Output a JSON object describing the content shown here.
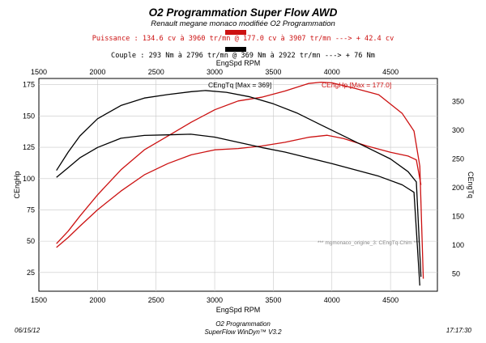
{
  "header": {
    "title": "O2 Programmation Super Flow AWD",
    "subtitle": "Renault megane monaco modifiée O2 Programmation",
    "power_summary": "Puissance : 134.6 cv à 3960 tr/mn  @  177.0 cv à 3907 tr/mn   ---> + 42.4 cv",
    "torque_summary": "Couple : 293 Nm à 2796 tr/mn  @  369 Nm à 2922 tr/mn    ---> + 76 Nm",
    "power_color": "#cc1111",
    "torque_color": "#000000"
  },
  "footer": {
    "date": "06/15/12",
    "company": "O2 Programmation",
    "software": "SuperFlow WinDyn™ V3.2",
    "time": "17:17:30"
  },
  "chart_data": {
    "type": "line",
    "xlabel": "EngSpd RPM",
    "ylabel_left": "CEngHp",
    "ylabel_right": "CEngTq",
    "xlim": [
      1500,
      4900
    ],
    "ylim_left": [
      10,
      180
    ],
    "ylim_right": [
      20,
      390
    ],
    "x_ticks": [
      1500,
      2000,
      2500,
      3000,
      3500,
      4000,
      4500
    ],
    "y_ticks_left": [
      25,
      50,
      75,
      100,
      125,
      150,
      175
    ],
    "y_ticks_right": [
      50,
      100,
      150,
      200,
      250,
      300,
      350
    ],
    "grid": true,
    "annotations": [
      "CEngTq [Max = 369]",
      "CEngHp [Max = 177.0]",
      "*** mgmonaco_origine_3: CEngTq-Chim  ***"
    ],
    "series": [
      {
        "name": "CEngHp",
        "axis": "left",
        "color": "#cc1111",
        "x": [
          1650,
          1750,
          1850,
          2000,
          2200,
          2400,
          2600,
          2800,
          3000,
          3200,
          3400,
          3600,
          3800,
          3907,
          4000,
          4200,
          4400,
          4600,
          4700,
          4750,
          4780
        ],
        "y": [
          48,
          58,
          70,
          87,
          107,
          123,
          134,
          145,
          155,
          162,
          165,
          170,
          176,
          177,
          176.5,
          172,
          167,
          152,
          138,
          110,
          20
        ]
      },
      {
        "name": "CEngHp",
        "axis": "left",
        "color": "#cc1111",
        "x": [
          1650,
          1750,
          1850,
          2000,
          2200,
          2400,
          2600,
          2800,
          3000,
          3200,
          3400,
          3600,
          3800,
          3960,
          4100,
          4300,
          4500,
          4650,
          4720,
          4760
        ],
        "y": [
          45,
          53,
          62,
          75,
          90,
          103,
          112,
          119,
          123,
          124,
          126,
          129,
          133,
          134.6,
          132,
          126,
          121,
          118,
          115,
          95
        ]
      },
      {
        "name": "CEngTq",
        "axis": "right",
        "color": "#000000",
        "x": [
          1650,
          1750,
          1850,
          2000,
          2200,
          2400,
          2600,
          2800,
          2922,
          3100,
          3300,
          3500,
          3700,
          3900,
          4100,
          4300,
          4500,
          4650,
          4720,
          4760
        ],
        "y": [
          230,
          262,
          290,
          320,
          343,
          356,
          362,
          367,
          369,
          366,
          358,
          346,
          330,
          310,
          290,
          270,
          250,
          228,
          210,
          45
        ]
      },
      {
        "name": "CEngTq",
        "axis": "right",
        "color": "#000000",
        "x": [
          1650,
          1750,
          1850,
          2000,
          2200,
          2400,
          2600,
          2796,
          3000,
          3200,
          3400,
          3600,
          3800,
          4000,
          4200,
          4400,
          4600,
          4700,
          4750
        ],
        "y": [
          218,
          235,
          252,
          270,
          286,
          291,
          292,
          293,
          288,
          279,
          270,
          262,
          252,
          242,
          231,
          220,
          205,
          192,
          30
        ]
      }
    ]
  }
}
